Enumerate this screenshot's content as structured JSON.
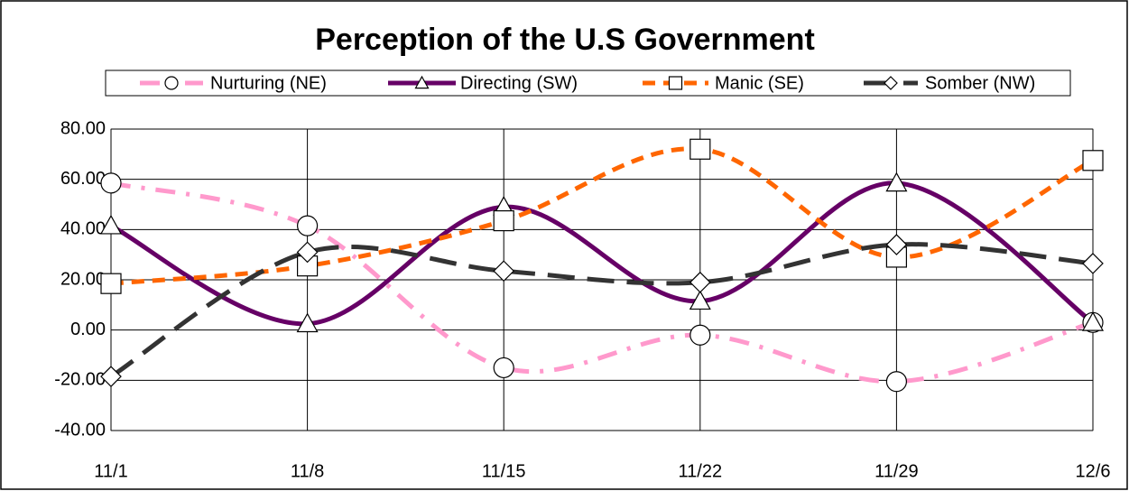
{
  "chart_data": {
    "type": "line",
    "title": "Perception of the U.S Government",
    "categories": [
      "11/1",
      "11/8",
      "11/15",
      "11/22",
      "11/29",
      "12/6"
    ],
    "series": [
      {
        "name": "Nurturing (NE)",
        "color": "#ff99cc",
        "line_style": "dash-dot",
        "marker": "circle",
        "values": [
          58.5,
          41.5,
          -15,
          -2,
          -20.5,
          3
        ]
      },
      {
        "name": "Directing (SW)",
        "color": "#660066",
        "line_style": "solid",
        "marker": "triangle",
        "values": [
          41.5,
          2.5,
          49,
          11.5,
          58.5,
          3
        ]
      },
      {
        "name": "Manic (SE)",
        "color": "#ff6600",
        "line_style": "dash",
        "marker": "square",
        "values": [
          18.5,
          25.5,
          43.5,
          72,
          29,
          67.5
        ]
      },
      {
        "name": "Somber (NW)",
        "color": "#333333",
        "line_style": "long-dash",
        "marker": "diamond",
        "values": [
          -18.5,
          31,
          23.5,
          19,
          34,
          26.5
        ]
      }
    ],
    "ylim": [
      -40,
      80
    ],
    "yticks": [
      {
        "value": -40,
        "label": "-40.00"
      },
      {
        "value": -20,
        "label": "-20.00"
      },
      {
        "value": 0,
        "label": "0.00"
      },
      {
        "value": 20,
        "label": "20.00"
      },
      {
        "value": 40,
        "label": "40.00"
      },
      {
        "value": 60,
        "label": "60.00"
      },
      {
        "value": 80,
        "label": "80.00"
      }
    ],
    "grid": true,
    "smooth": true,
    "legend": "top"
  }
}
